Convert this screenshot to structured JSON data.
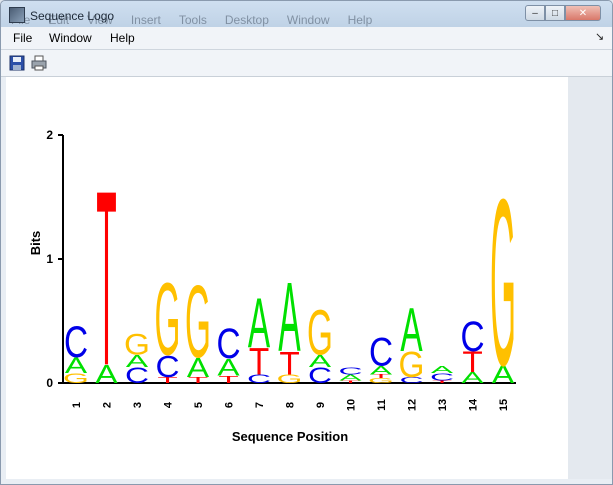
{
  "window": {
    "title": "Sequence Logo"
  },
  "ghost_menu": [
    "File",
    "Edit",
    "View",
    "Insert",
    "Tools",
    "Desktop",
    "Window",
    "Help"
  ],
  "menu": {
    "file": "File",
    "window": "Window",
    "help": "Help"
  },
  "toolbar": {
    "save_icon": "save-icon",
    "print_icon": "print-icon"
  },
  "colors": {
    "A": "#00e000",
    "C": "#0000e8",
    "G": "#ffc000",
    "T": "#ff0000"
  },
  "chart_data": {
    "type": "sequence-logo",
    "xlabel": "Sequence Position",
    "ylabel": "Bits",
    "ylim": [
      0,
      2
    ],
    "yticks": [
      "0",
      "1",
      "2"
    ],
    "positions": [
      "1",
      "2",
      "3",
      "4",
      "5",
      "6",
      "7",
      "8",
      "9",
      "10",
      "11",
      "12",
      "13",
      "14",
      "15"
    ],
    "stacks": [
      [
        [
          "G",
          0.08
        ],
        [
          "A",
          0.13
        ],
        [
          "C",
          0.26
        ]
      ],
      [
        [
          "A",
          0.15
        ],
        [
          "T",
          1.45
        ]
      ],
      [
        [
          "C",
          0.13
        ],
        [
          "A",
          0.1
        ],
        [
          "G",
          0.17
        ]
      ],
      [
        [
          "T",
          0.05
        ],
        [
          "C",
          0.18
        ],
        [
          "G",
          0.6
        ]
      ],
      [
        [
          "T",
          0.05
        ],
        [
          "A",
          0.16
        ],
        [
          "G",
          0.6
        ]
      ],
      [
        [
          "T",
          0.06
        ],
        [
          "A",
          0.14
        ],
        [
          "C",
          0.25
        ]
      ],
      [
        [
          "C",
          0.07
        ],
        [
          "T",
          0.22
        ],
        [
          "A",
          0.41
        ]
      ],
      [
        [
          "G",
          0.07
        ],
        [
          "T",
          0.19
        ],
        [
          "A",
          0.57
        ]
      ],
      [
        [
          "C",
          0.13
        ],
        [
          "A",
          0.1
        ],
        [
          "G",
          0.37
        ]
      ],
      [
        [
          "T",
          0.02
        ],
        [
          "A",
          0.05
        ],
        [
          "C",
          0.06
        ]
      ],
      [
        [
          "G",
          0.04
        ],
        [
          "T",
          0.03
        ],
        [
          "A",
          0.07
        ],
        [
          "C",
          0.23
        ]
      ],
      [
        [
          "C",
          0.05
        ],
        [
          "G",
          0.21
        ],
        [
          "A",
          0.36
        ]
      ],
      [
        [
          "T",
          0.02
        ],
        [
          "C",
          0.06
        ],
        [
          "A",
          0.06
        ]
      ],
      [
        [
          "A",
          0.09
        ],
        [
          "T",
          0.17
        ],
        [
          "C",
          0.25
        ]
      ],
      [
        [
          "A",
          0.15
        ],
        [
          "G",
          1.38
        ]
      ]
    ]
  }
}
